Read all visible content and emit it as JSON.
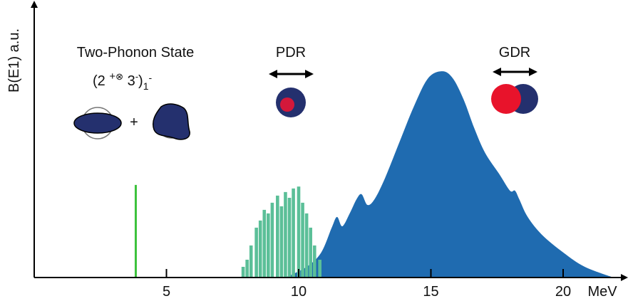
{
  "chart_data": {
    "type": "area",
    "y_label": "B(E1) a.u.",
    "x_label": "MeV",
    "xlim": [
      0,
      22.5
    ],
    "ylim": [
      0,
      100
    ],
    "xticks": [
      5,
      10,
      15,
      20
    ],
    "annotations": {
      "two_phonon_title": "Two-Phonon State",
      "formula": [
        "(2 ",
        "+",
        "⊗",
        " 3",
        "-",
        ")",
        "1",
        "-"
      ],
      "plus": "+",
      "pdr": "PDR",
      "gdr": "GDR"
    },
    "series": [
      {
        "type": "line-marker",
        "color": "#3cc23c",
        "x": [
          3.84
        ],
        "values": [
          33.8
        ]
      },
      {
        "type": "area",
        "color": "#1f6bb0",
        "x": [
          9.5,
          10.3,
          10.85,
          11.25,
          11.45,
          11.65,
          11.93,
          12.19,
          12.38,
          12.6,
          12.87,
          13.27,
          13.81,
          14.35,
          14.89,
          15.43,
          15.83,
          16.24,
          16.64,
          17.05,
          17.59,
          17.99,
          18.18,
          18.34,
          18.66,
          19.2,
          20.01,
          20.82,
          21.9
        ],
        "values": [
          0,
          3.9,
          9.1,
          18.2,
          22.1,
          18.7,
          23.4,
          28.6,
          30.4,
          26.5,
          28.6,
          36.4,
          49.4,
          62.3,
          72.7,
          75.3,
          72.7,
          64.9,
          54.5,
          45.5,
          37.7,
          31.7,
          31.7,
          28.6,
          22.1,
          15.6,
          9.1,
          3.9,
          0
        ]
      },
      {
        "type": "bar",
        "color": "#5bbf98",
        "x": [
          7.9,
          8.05,
          8.2,
          8.4,
          8.55,
          8.7,
          8.85,
          9.0,
          9.2,
          9.35,
          9.5,
          9.65,
          9.8,
          10.0,
          10.15,
          10.3,
          10.45,
          10.6,
          10.8
        ],
        "values": [
          3.9,
          6.5,
          11.7,
          18.2,
          20.8,
          24.7,
          23.4,
          27.3,
          29.9,
          26,
          31.2,
          29.1,
          32.5,
          33.2,
          27.3,
          23.4,
          18.2,
          11.7,
          6.5
        ]
      }
    ]
  }
}
